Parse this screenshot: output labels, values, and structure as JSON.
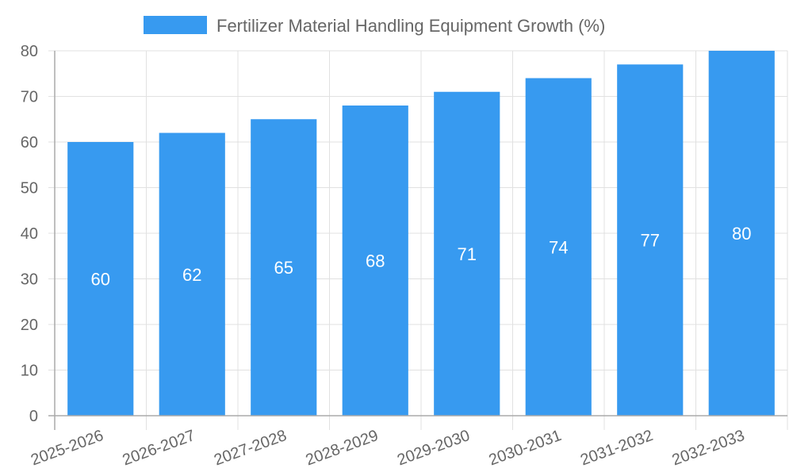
{
  "chart_data": {
    "type": "bar",
    "title": "",
    "legend": {
      "position": "top",
      "entries": [
        {
          "label": "Fertilizer Material Handling Equipment Growth (%)",
          "color": "#379AF0"
        }
      ]
    },
    "categories": [
      "2025-2026",
      "2026-2027",
      "2027-2028",
      "2028-2029",
      "2029-2030",
      "2030-2031",
      "2031-2032",
      "2032-2033"
    ],
    "series": [
      {
        "name": "Fertilizer Material Handling Equipment Growth (%)",
        "values": [
          60,
          62,
          65,
          68,
          71,
          74,
          77,
          80
        ],
        "color": "#379AF0"
      }
    ],
    "data_labels": [
      "60",
      "62",
      "65",
      "68",
      "71",
      "74",
      "77",
      "80"
    ],
    "xlabel": "",
    "ylabel": "",
    "ylim": [
      0,
      80
    ],
    "yticks": [
      0,
      10,
      20,
      30,
      40,
      50,
      60,
      70,
      80
    ],
    "ytick_labels": [
      "0",
      "10",
      "20",
      "30",
      "40",
      "50",
      "60",
      "70",
      "80"
    ],
    "xtick_rotation": -20,
    "grid": true
  }
}
